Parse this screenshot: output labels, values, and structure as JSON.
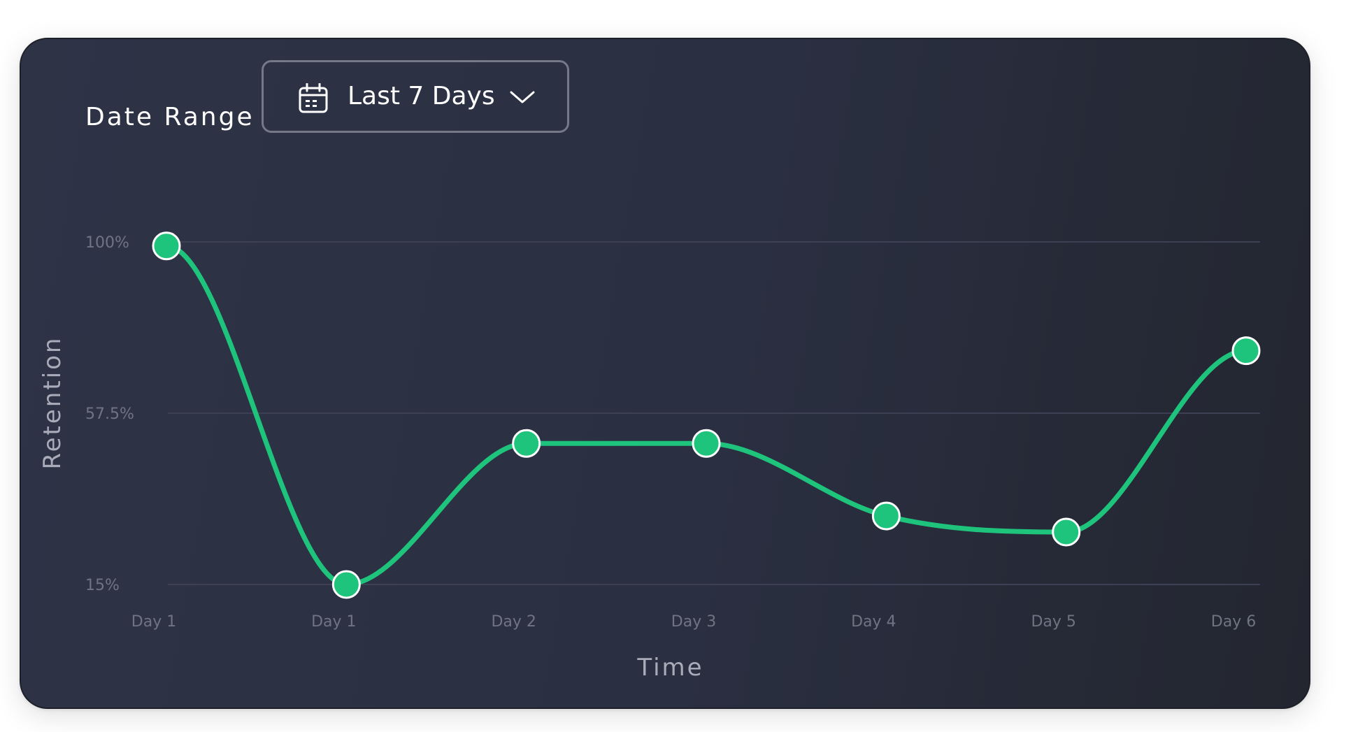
{
  "filter": {
    "label": "Date Range",
    "selected": "Last 7 Days",
    "calendar_icon": "calendar-icon",
    "chevron_icon": "chevron-down-icon"
  },
  "colors": {
    "line": "#1fc47c",
    "grid": "#3c4052",
    "tick": "#6f7382",
    "axis_title": "#a9acb8",
    "point_stroke": "#ffffff"
  },
  "chart_data": {
    "type": "line",
    "title": "",
    "xlabel": "Time",
    "ylabel": "Retention",
    "categories": [
      "Day 1",
      "Day 1",
      "Day 2",
      "Day 3",
      "Day 4",
      "Day 5",
      "Day 6"
    ],
    "y_ticks": [
      "100%",
      "57.5%",
      "15%"
    ],
    "ylim": [
      15,
      100
    ],
    "grid": true,
    "legend": "none",
    "series": [
      {
        "values": [
          99,
          15,
          50,
          50,
          32,
          28,
          73
        ]
      }
    ]
  }
}
